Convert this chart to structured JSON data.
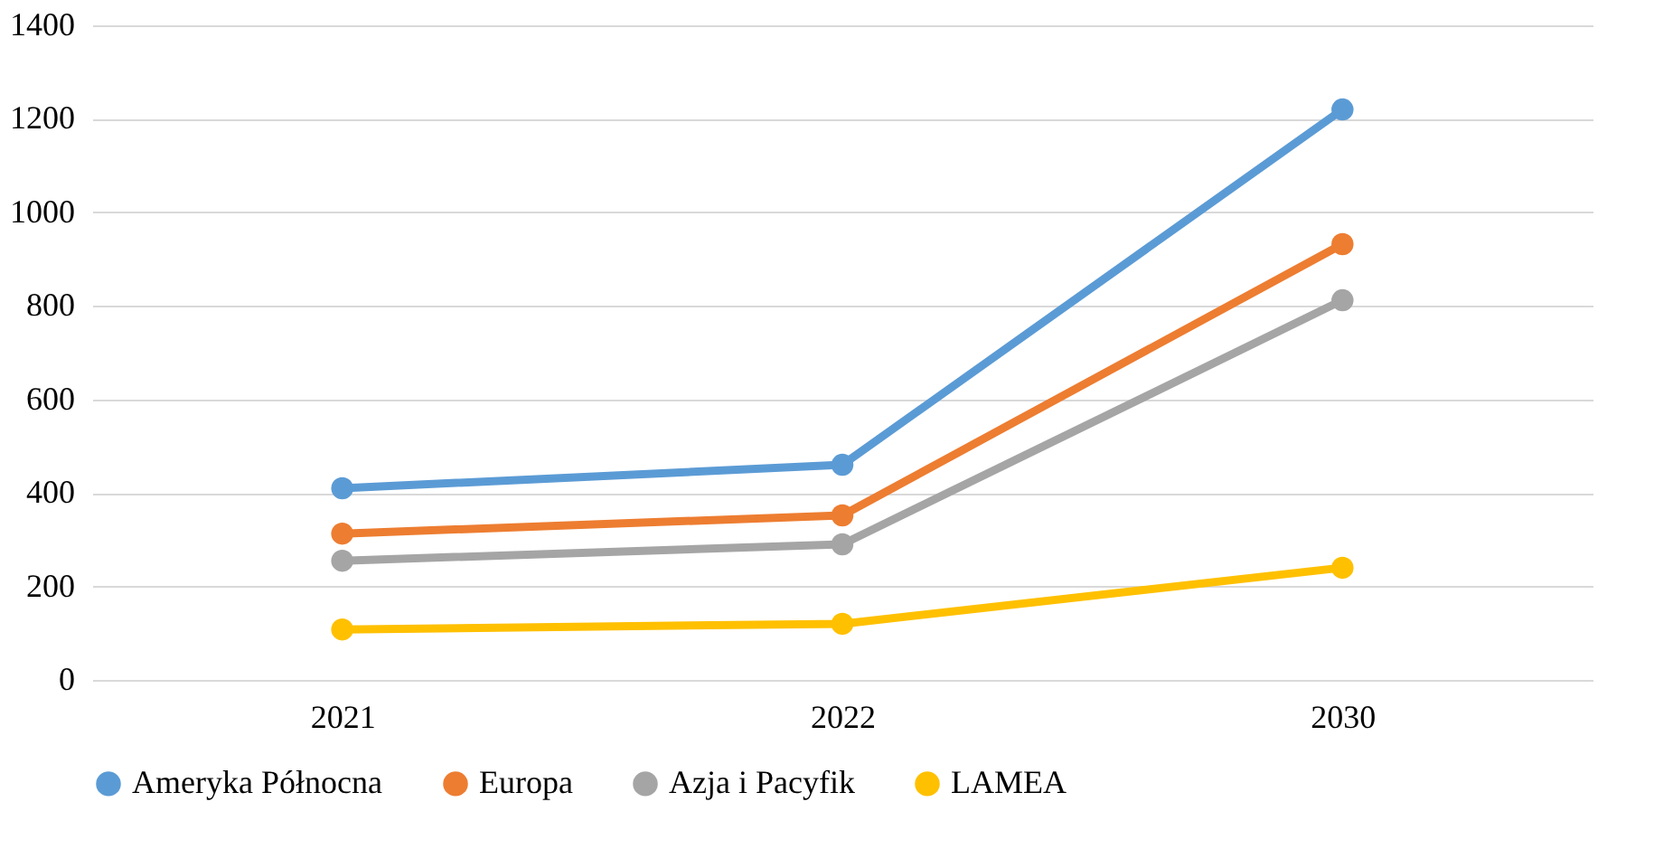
{
  "chart_data": {
    "type": "line",
    "categories": [
      "2021",
      "2022",
      "2030"
    ],
    "series": [
      {
        "name": "Ameryka Północna",
        "color": "#5b9bd5",
        "values": [
          410,
          460,
          1220
        ]
      },
      {
        "name": "Europa",
        "color": "#ed7d31",
        "values": [
          313,
          352,
          932
        ]
      },
      {
        "name": "Azja i Pacyfik",
        "color": "#a5a5a5",
        "values": [
          255,
          290,
          812
        ]
      },
      {
        "name": "LAMEA",
        "color": "#ffc000",
        "values": [
          108,
          120,
          240
        ]
      }
    ],
    "ylim": [
      0,
      1400
    ],
    "yticks": [
      0,
      200,
      400,
      600,
      800,
      1000,
      1200,
      1400
    ],
    "grid": "y",
    "legend": "bottom",
    "marker": "circle",
    "line_style": "solid"
  }
}
